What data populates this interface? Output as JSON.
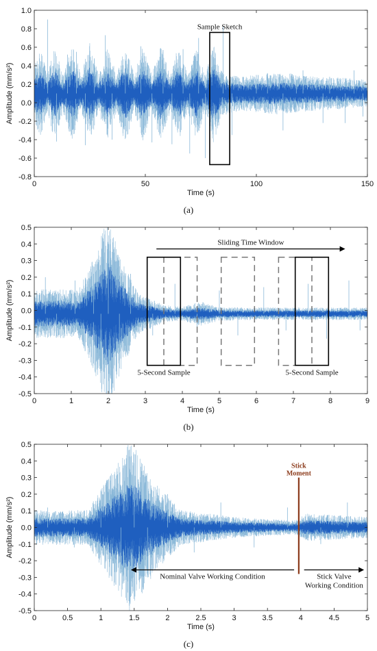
{
  "chart_data": [
    {
      "id": "a",
      "type": "line",
      "caption": "(a)",
      "xlabel": "Time (s)",
      "ylabel": "Amplitude (mm/s²)",
      "xlim": [
        0,
        150
      ],
      "ylim": [
        -0.8,
        1.0
      ],
      "xticks": [
        0,
        50,
        100,
        150
      ],
      "yticks": [
        -0.8,
        -0.6,
        -0.4,
        -0.2,
        0.0,
        0.2,
        0.4,
        0.6,
        0.8,
        1.0
      ],
      "ytick_decimals": 1,
      "series": [
        {
          "color": "#1f5fbf",
          "light_color": "#8ab8d8",
          "base_amplitude": 0.1,
          "envelope": [
            [
              0,
              0.16
            ],
            [
              3,
              0.22
            ],
            [
              6,
              0.1
            ],
            [
              9,
              0.24
            ],
            [
              13,
              0.1
            ],
            [
              17,
              0.25
            ],
            [
              21,
              0.1
            ],
            [
              25,
              0.26
            ],
            [
              29,
              0.1
            ],
            [
              33,
              0.24
            ],
            [
              37,
              0.1
            ],
            [
              41,
              0.26
            ],
            [
              45,
              0.1
            ],
            [
              49,
              0.25
            ],
            [
              53,
              0.1
            ],
            [
              57,
              0.26
            ],
            [
              61,
              0.1
            ],
            [
              65,
              0.25
            ],
            [
              69,
              0.1
            ],
            [
              73,
              0.24
            ],
            [
              77,
              0.1
            ],
            [
              81,
              0.27
            ],
            [
              84,
              0.12
            ],
            [
              88,
              0.1
            ],
            [
              95,
              0.09
            ],
            [
              110,
              0.11
            ],
            [
              125,
              0.09
            ],
            [
              140,
              0.08
            ],
            [
              150,
              0.07
            ]
          ],
          "spikes": [
            [
              6,
              0.9
            ],
            [
              10,
              -0.42
            ],
            [
              15,
              0.52
            ],
            [
              19,
              0.55
            ],
            [
              23,
              -0.46
            ],
            [
              27,
              0.48
            ],
            [
              32,
              0.73
            ],
            [
              35,
              -0.4
            ],
            [
              41,
              0.47
            ],
            [
              48,
              0.61
            ],
            [
              53,
              -0.43
            ],
            [
              58,
              0.57
            ],
            [
              62,
              -0.45
            ],
            [
              67,
              0.58
            ],
            [
              70,
              -0.55
            ],
            [
              74,
              0.7
            ],
            [
              77,
              -0.6
            ],
            [
              85,
              0.82
            ],
            [
              89,
              -0.35
            ],
            [
              100,
              0.3
            ],
            [
              105,
              0.32
            ],
            [
              112,
              -0.3
            ],
            [
              118,
              0.25
            ],
            [
              121,
              0.35
            ],
            [
              130,
              -0.22
            ],
            [
              133,
              0.28
            ],
            [
              140,
              -0.22
            ],
            [
              144,
              0.35
            ],
            [
              148,
              -0.15
            ]
          ]
        }
      ],
      "annotations": {
        "box_label": "Sample Sketch",
        "box": {
          "x0": 79,
          "x1": 88,
          "y0": -0.67,
          "y1": 0.76
        }
      }
    },
    {
      "id": "b",
      "type": "line",
      "caption": "(b)",
      "xlabel": "Time (s)",
      "ylabel": "Amplitude (mm/s²)",
      "xlim": [
        0,
        9
      ],
      "ylim": [
        -0.5,
        0.5
      ],
      "xticks": [
        0,
        1,
        2,
        3,
        4,
        5,
        6,
        7,
        8,
        9
      ],
      "yticks": [
        -0.5,
        -0.4,
        -0.3,
        -0.2,
        -0.1,
        0.0,
        0.1,
        0.2,
        0.3,
        0.4,
        0.5
      ],
      "ytick_decimals": 1,
      "series": [
        {
          "color": "#1f5fbf",
          "light_color": "#8ab8d8",
          "base_amplitude": -0.02,
          "envelope": [
            [
              0,
              0.07
            ],
            [
              1.2,
              0.07
            ],
            [
              1.6,
              0.16
            ],
            [
              2.0,
              0.28
            ],
            [
              2.4,
              0.15
            ],
            [
              2.8,
              0.06
            ],
            [
              3.5,
              0.025
            ],
            [
              4.0,
              0.02
            ],
            [
              4.5,
              0.035
            ],
            [
              5.0,
              0.02
            ],
            [
              6.0,
              0.018
            ],
            [
              7.0,
              0.018
            ],
            [
              8.0,
              0.018
            ],
            [
              9.0,
              0.018
            ]
          ],
          "spikes": [
            [
              0.3,
              0.2
            ],
            [
              0.6,
              -0.15
            ],
            [
              1.1,
              0.18
            ],
            [
              1.6,
              0.22
            ],
            [
              1.8,
              -0.35
            ],
            [
              2.0,
              0.4
            ],
            [
              2.3,
              -0.3
            ],
            [
              2.6,
              0.22
            ],
            [
              3.2,
              -0.15
            ],
            [
              3.8,
              0.16
            ],
            [
              4.4,
              -0.13
            ],
            [
              5.0,
              0.12
            ],
            [
              5.5,
              -0.15
            ],
            [
              6.2,
              0.14
            ],
            [
              6.8,
              -0.12
            ],
            [
              7.4,
              0.16
            ],
            [
              7.9,
              -0.17
            ],
            [
              8.5,
              0.18
            ],
            [
              8.8,
              -0.12
            ]
          ]
        }
      ],
      "annotations": {
        "arrow_label": "Sliding Time Window",
        "arrow": {
          "x0": 3.3,
          "x1": 8.4,
          "y": 0.37
        },
        "solid_boxes": [
          {
            "x0": 3.05,
            "x1": 3.95
          },
          {
            "x0": 7.05,
            "x1": 7.95
          }
        ],
        "dashed_boxes": [
          {
            "x0": 3.5,
            "x1": 4.4
          },
          {
            "x0": 5.05,
            "x1": 5.95
          },
          {
            "x0": 6.6,
            "x1": 7.5
          }
        ],
        "box_y": [
          -0.33,
          0.32
        ],
        "sample_labels": [
          "5-Second Sample",
          "5-Second Sample"
        ]
      }
    },
    {
      "id": "c",
      "type": "line",
      "caption": "(c)",
      "xlabel": "Time (s)",
      "ylabel": "Amplitude (mm/s²)",
      "xlim": [
        0,
        5
      ],
      "ylim": [
        -0.5,
        0.5
      ],
      "xticks": [
        0,
        0.5,
        1,
        1.5,
        2,
        2.5,
        3,
        3.5,
        4,
        4.5,
        5
      ],
      "yticks": [
        -0.5,
        -0.4,
        -0.3,
        -0.2,
        -0.1,
        0.0,
        0.1,
        0.2,
        0.3,
        0.4,
        0.5
      ],
      "ytick_decimals": 1,
      "series": [
        {
          "color": "#1f5fbf",
          "light_color": "#8ab8d8",
          "base_amplitude": 0.0,
          "envelope": [
            [
              0,
              0.05
            ],
            [
              0.8,
              0.05
            ],
            [
              1.1,
              0.14
            ],
            [
              1.45,
              0.25
            ],
            [
              1.8,
              0.13
            ],
            [
              2.2,
              0.05
            ],
            [
              3.0,
              0.03
            ],
            [
              3.9,
              0.02
            ],
            [
              4.1,
              0.04
            ],
            [
              5.0,
              0.03
            ]
          ],
          "spikes": [
            [
              0.2,
              0.12
            ],
            [
              0.6,
              -0.12
            ],
            [
              1.0,
              0.22
            ],
            [
              1.3,
              -0.25
            ],
            [
              1.5,
              0.44
            ],
            [
              1.7,
              -0.3
            ],
            [
              2.0,
              0.2
            ],
            [
              2.4,
              -0.15
            ],
            [
              2.8,
              0.15
            ],
            [
              3.3,
              -0.12
            ],
            [
              3.8,
              0.12
            ],
            [
              4.3,
              -0.1
            ],
            [
              4.7,
              0.15
            ]
          ]
        }
      ],
      "annotations": {
        "stick_label_line1": "Stick",
        "stick_label_line2": "Moment",
        "stick_x": 3.97,
        "stick_y": [
          -0.28,
          0.3
        ],
        "stick_color": "#8b3a1a",
        "left_label": "Nominal Valve Working Condition",
        "right_label_line1": "Stick Valve",
        "right_label_line2": "Working Condition",
        "left_arrow": {
          "x0": 3.9,
          "x1": 1.45,
          "y": -0.255
        },
        "right_arrow": {
          "x0": 4.05,
          "x1": 4.95,
          "y": -0.255
        }
      }
    }
  ]
}
